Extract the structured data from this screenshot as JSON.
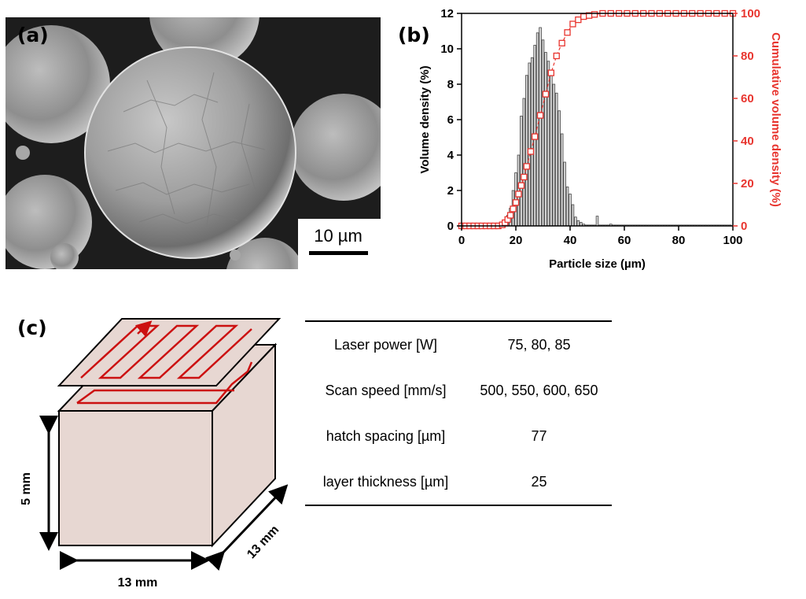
{
  "panels": {
    "a": {
      "label": "(a)",
      "scale_bar_label": "10 µm"
    },
    "b": {
      "label": "(b)"
    },
    "c": {
      "label": "(c)",
      "height_label": "5 mm",
      "width_label": "13 mm",
      "depth_label": "13 mm"
    }
  },
  "colors": {
    "cumulative_series": "#e8352f",
    "histogram_fill": "#d9d9d9",
    "cube_fill": "#e7d7d2",
    "scan_path": "#cc1111"
  },
  "chart_data": {
    "type": "bar",
    "xlabel": "Particle size (µm)",
    "ylabel": "Volume density (%)",
    "y2label": "Cumulative volume density (%)",
    "xlim": [
      0,
      100
    ],
    "ylim": [
      0,
      12
    ],
    "y2lim": [
      0,
      100
    ],
    "xticks": [
      0,
      20,
      40,
      60,
      80,
      100
    ],
    "yticks": [
      0,
      2,
      4,
      6,
      8,
      10,
      12
    ],
    "y2ticks": [
      0,
      20,
      40,
      60,
      80,
      100
    ],
    "series": [
      {
        "kind": "bar",
        "axis": "left",
        "x": [
          11,
          12,
          13,
          14,
          15,
          16,
          17,
          18,
          19,
          20,
          21,
          22,
          23,
          24,
          25,
          26,
          27,
          28,
          29,
          30,
          31,
          32,
          33,
          34,
          35,
          36,
          37,
          38,
          39,
          40,
          41,
          42,
          43,
          44,
          45,
          46,
          47,
          48,
          49,
          50,
          51,
          52,
          53,
          54,
          55,
          56,
          57,
          58,
          59,
          60,
          61,
          62,
          63,
          64,
          65,
          66,
          67,
          68,
          69,
          70,
          71,
          72,
          73,
          74,
          75,
          76,
          77,
          78,
          79,
          80,
          81,
          82,
          83,
          84,
          85,
          86,
          87,
          88,
          89,
          90,
          91,
          92,
          93,
          94,
          95,
          96,
          97,
          98,
          99
        ],
        "values": [
          0.02,
          0.04,
          0.05,
          0.08,
          0.15,
          0.3,
          0.6,
          1.0,
          2.0,
          3.0,
          4.0,
          6.2,
          7.2,
          8.5,
          9.2,
          9.5,
          10.2,
          10.9,
          11.2,
          10.5,
          9.8,
          9.3,
          8.8,
          8.0,
          7.5,
          6.5,
          5.2,
          3.6,
          2.2,
          1.8,
          1.2,
          0.5,
          0.3,
          0.2,
          0.1,
          0.05,
          0.05,
          0.05,
          0.05,
          0.55,
          0.05,
          0.05,
          0.05,
          0.05,
          0.1,
          0.05,
          0.05,
          0.05,
          0.05,
          0.05,
          0.05,
          0.05,
          0.05,
          0.05,
          0.05,
          0.05,
          0.05,
          0.05,
          0.05,
          0.05,
          0.05,
          0.05,
          0.05,
          0.05,
          0.05,
          0.05,
          0.05,
          0.05,
          0.05,
          0.05,
          0.05,
          0.05,
          0.05,
          0.05,
          0.05,
          0.05,
          0.05,
          0.05,
          0.05,
          0.05,
          0.05,
          0.05,
          0.05,
          0.05,
          0.05,
          0.05,
          0.05,
          0.05,
          0.05
        ]
      },
      {
        "kind": "line-markers",
        "axis": "right",
        "x": [
          0,
          1.5,
          3,
          4.5,
          6,
          7.5,
          9,
          10.5,
          12,
          13.5,
          15,
          16,
          17,
          18,
          19,
          20,
          21,
          22,
          23,
          24,
          25.5,
          27,
          29,
          31,
          33,
          35,
          37,
          39,
          41,
          43,
          45,
          47,
          49,
          52,
          55,
          58,
          61,
          64,
          67,
          70,
          73,
          76,
          79,
          82,
          85,
          88,
          91,
          94,
          97,
          100
        ],
        "values": [
          0,
          0,
          0,
          0,
          0,
          0,
          0,
          0,
          0,
          0,
          0.5,
          1.5,
          3,
          5,
          8,
          11,
          15,
          19,
          23,
          28,
          35,
          42,
          52,
          62,
          72,
          80,
          86,
          91,
          95,
          97,
          98.5,
          99,
          99.5,
          100,
          100,
          100,
          100,
          100,
          100,
          100,
          100,
          100,
          100,
          100,
          100,
          100,
          100,
          100,
          100,
          100
        ]
      }
    ]
  },
  "params_table": {
    "rows": [
      {
        "label": "Laser power [W]",
        "value": "75, 80, 85"
      },
      {
        "label": "Scan speed [mm/s]",
        "value": "500, 550, 600, 650"
      },
      {
        "label": "hatch spacing [µm]",
        "value": "77"
      },
      {
        "label": "layer thickness [µm]",
        "value": "25"
      }
    ]
  }
}
